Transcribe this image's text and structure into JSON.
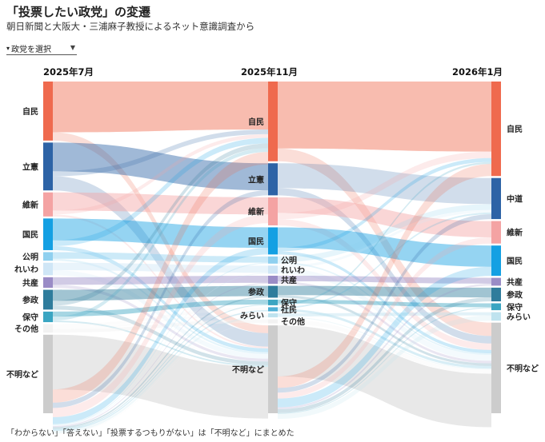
{
  "header": {
    "title": "「投票したい政党」の変遷",
    "subtitle": "朝日新聞と大阪大・三浦麻子教授によるネット意識調査から"
  },
  "selector": {
    "label": "政党を選択",
    "marker": "▾",
    "arrow": "▼"
  },
  "footnote": "「わからない」「答えない」「投票するつもりがない」は「不明など」にまとめた",
  "chart_data": {
    "type": "sankey",
    "stages": [
      {
        "label": "2025年7月",
        "nodes": [
          {
            "id": "自民",
            "label": "自民",
            "share": 17.9,
            "color": "#ef6a4e"
          },
          {
            "id": "立憲",
            "label": "立憲",
            "share": 14.5,
            "color": "#2d63a6"
          },
          {
            "id": "維新",
            "label": "維新",
            "share": 7.3,
            "color": "#f4a3a3"
          },
          {
            "id": "国民",
            "label": "国民",
            "share": 9.6,
            "color": "#14a0e3"
          },
          {
            "id": "公明",
            "label": "公明",
            "share": 2.6,
            "color": "#8fd0ef"
          },
          {
            "id": "れいわ",
            "label": "れいわ",
            "share": 3.8,
            "color": "#cfe6f6"
          },
          {
            "id": "共産",
            "label": "共産",
            "share": 3.2,
            "color": "#9a8cc6"
          },
          {
            "id": "参政",
            "label": "参政",
            "share": 6.0,
            "color": "#2f7c9c"
          },
          {
            "id": "保守",
            "label": "保守",
            "share": 3.2,
            "color": "#3aa5c2"
          },
          {
            "id": "その他",
            "label": "その他",
            "share": 2.6,
            "color": "#f2f2f2"
          },
          {
            "id": "不明など",
            "label": "不明など",
            "share": 23.8,
            "color": "#cccccc"
          }
        ]
      },
      {
        "label": "2025年11月",
        "nodes": [
          {
            "id": "自民",
            "label": "自民",
            "share": 25.6,
            "color": "#ef6a4e"
          },
          {
            "id": "立憲",
            "label": "立憲",
            "share": 10.3,
            "color": "#2d63a6"
          },
          {
            "id": "維新",
            "label": "維新",
            "share": 9.0,
            "color": "#f4a3a3"
          },
          {
            "id": "国民",
            "label": "国民",
            "share": 8.7,
            "color": "#14a0e3"
          },
          {
            "id": "公明",
            "label": "公明",
            "share": 2.3,
            "color": "#8fd0ef"
          },
          {
            "id": "れいわ",
            "label": "れいわ",
            "share": 2.6,
            "color": "#cfe6f6"
          },
          {
            "id": "共産",
            "label": "共産",
            "share": 2.6,
            "color": "#9a8cc6"
          },
          {
            "id": "参政",
            "label": "参政",
            "share": 3.8,
            "color": "#2f7c9c"
          },
          {
            "id": "保守",
            "label": "保守",
            "share": 1.8,
            "color": "#3aa5c2"
          },
          {
            "id": "社民",
            "label": "社民",
            "share": 1.3,
            "color": "#4fb0d6"
          },
          {
            "id": "みらい",
            "label": "みらい",
            "share": 1.3,
            "color": "#bfe3ef"
          },
          {
            "id": "その他",
            "label": "その他",
            "share": 1.3,
            "color": "#f2f2f2"
          },
          {
            "id": "不明など",
            "label": "不明など",
            "share": 28.2,
            "color": "#cccccc"
          }
        ]
      },
      {
        "label": "2026年1月",
        "nodes": [
          {
            "id": "自民",
            "label": "自民",
            "share": 29.0,
            "color": "#ef6a4e"
          },
          {
            "id": "中道",
            "label": "中道",
            "share": 12.6,
            "color": "#2d63a6"
          },
          {
            "id": "維新",
            "label": "維新",
            "share": 6.9,
            "color": "#f4a3a3"
          },
          {
            "id": "国民",
            "label": "国民",
            "share": 9.3,
            "color": "#14a0e3"
          },
          {
            "id": "共産",
            "label": "共産",
            "share": 2.4,
            "color": "#9a8cc6"
          },
          {
            "id": "参政",
            "label": "参政",
            "share": 4.2,
            "color": "#2f7c9c"
          },
          {
            "id": "保守",
            "label": "保守",
            "share": 2.1,
            "color": "#3aa5c2"
          },
          {
            "id": "みらい",
            "label": "みらい",
            "share": 2.6,
            "color": "#bfe3ef"
          },
          {
            "id": "不明など",
            "label": "不明など",
            "share": 27.8,
            "color": "#cccccc"
          }
        ]
      }
    ],
    "links": [
      [
        {
          "from": "自民",
          "to": "自民",
          "value": 15.4
        },
        {
          "from": "自民",
          "to": "不明など",
          "value": 2.5
        },
        {
          "from": "立憲",
          "to": "立憲",
          "value": 8.7
        },
        {
          "from": "立憲",
          "to": "自民",
          "value": 1.5
        },
        {
          "from": "立憲",
          "to": "不明など",
          "value": 4.3
        },
        {
          "from": "維新",
          "to": "維新",
          "value": 5.5
        },
        {
          "from": "維新",
          "to": "自民",
          "value": 1.2
        },
        {
          "from": "維新",
          "to": "不明など",
          "value": 0.6
        },
        {
          "from": "国民",
          "to": "国民",
          "value": 6.6
        },
        {
          "from": "国民",
          "to": "自民",
          "value": 1.8
        },
        {
          "from": "国民",
          "to": "不明など",
          "value": 1.2
        },
        {
          "from": "公明",
          "to": "公明",
          "value": 2.0
        },
        {
          "from": "公明",
          "to": "不明など",
          "value": 0.6
        },
        {
          "from": "れいわ",
          "to": "れいわ",
          "value": 2.3
        },
        {
          "from": "れいわ",
          "to": "不明など",
          "value": 1.5
        },
        {
          "from": "共産",
          "to": "共産",
          "value": 2.3
        },
        {
          "from": "共産",
          "to": "不明など",
          "value": 0.9
        },
        {
          "from": "参政",
          "to": "参政",
          "value": 3.3
        },
        {
          "from": "参政",
          "to": "自民",
          "value": 1.5
        },
        {
          "from": "参政",
          "to": "不明など",
          "value": 1.2
        },
        {
          "from": "保守",
          "to": "保守",
          "value": 1.5
        },
        {
          "from": "保守",
          "to": "自民",
          "value": 1.2
        },
        {
          "from": "保守",
          "to": "不明など",
          "value": 0.5
        },
        {
          "from": "その他",
          "to": "社民",
          "value": 0.9
        },
        {
          "from": "その他",
          "to": "みらい",
          "value": 0.6
        },
        {
          "from": "その他",
          "to": "その他",
          "value": 1.1
        },
        {
          "from": "不明など",
          "to": "不明など",
          "value": 16.6
        },
        {
          "from": "不明など",
          "to": "自民",
          "value": 4.0
        },
        {
          "from": "不明など",
          "to": "立憲",
          "value": 1.6
        },
        {
          "from": "不明など",
          "to": "維新",
          "value": 2.8
        },
        {
          "from": "不明など",
          "to": "国民",
          "value": 2.1
        },
        {
          "from": "不明など",
          "to": "公明",
          "value": 0.3
        },
        {
          "from": "不明など",
          "to": "れいわ",
          "value": 0.3
        },
        {
          "from": "不明など",
          "to": "共産",
          "value": 0.3
        },
        {
          "from": "不明など",
          "to": "参政",
          "value": 0.5
        },
        {
          "from": "不明など",
          "to": "保守",
          "value": 0.3
        },
        {
          "from": "不明など",
          "to": "社民",
          "value": 0.4
        },
        {
          "from": "不明など",
          "to": "みらい",
          "value": 0.7
        },
        {
          "from": "不明など",
          "to": "その他",
          "value": 0.2
        }
      ],
      [
        {
          "from": "自民",
          "to": "自民",
          "value": 21.5
        },
        {
          "from": "自民",
          "to": "不明など",
          "value": 4.1
        },
        {
          "from": "立憲",
          "to": "中道",
          "value": 8.0
        },
        {
          "from": "立憲",
          "to": "不明など",
          "value": 2.3
        },
        {
          "from": "維新",
          "to": "維新",
          "value": 5.0
        },
        {
          "from": "維新",
          "to": "自民",
          "value": 2.0
        },
        {
          "from": "維新",
          "to": "不明など",
          "value": 2.0
        },
        {
          "from": "国民",
          "to": "国民",
          "value": 6.5
        },
        {
          "from": "国民",
          "to": "自民",
          "value": 1.2
        },
        {
          "from": "国民",
          "to": "不明など",
          "value": 1.0
        },
        {
          "from": "公明",
          "to": "中道",
          "value": 1.8
        },
        {
          "from": "公明",
          "to": "不明など",
          "value": 0.5
        },
        {
          "from": "れいわ",
          "to": "中道",
          "value": 0.8
        },
        {
          "from": "れいわ",
          "to": "不明など",
          "value": 1.8
        },
        {
          "from": "共産",
          "to": "共産",
          "value": 1.8
        },
        {
          "from": "共産",
          "to": "不明など",
          "value": 0.8
        },
        {
          "from": "参政",
          "to": "参政",
          "value": 3.0
        },
        {
          "from": "参政",
          "to": "不明など",
          "value": 0.8
        },
        {
          "from": "保守",
          "to": "保守",
          "value": 1.2
        },
        {
          "from": "保守",
          "to": "自民",
          "value": 0.6
        },
        {
          "from": "社民",
          "to": "中道",
          "value": 0.5
        },
        {
          "from": "社民",
          "to": "不明など",
          "value": 0.8
        },
        {
          "from": "みらい",
          "to": "みらい",
          "value": 1.0
        },
        {
          "from": "みらい",
          "to": "不明など",
          "value": 0.3
        },
        {
          "from": "その他",
          "to": "不明など",
          "value": 1.3
        },
        {
          "from": "不明など",
          "to": "不明など",
          "value": 16.4
        },
        {
          "from": "不明など",
          "to": "自民",
          "value": 3.7
        },
        {
          "from": "不明など",
          "to": "中道",
          "value": 1.5
        },
        {
          "from": "不明など",
          "to": "維新",
          "value": 1.9
        },
        {
          "from": "不明など",
          "to": "国民",
          "value": 2.8
        },
        {
          "from": "不明など",
          "to": "共産",
          "value": 0.6
        },
        {
          "from": "不明など",
          "to": "参政",
          "value": 1.2
        },
        {
          "from": "不明など",
          "to": "保守",
          "value": 0.3
        },
        {
          "from": "不明など",
          "to": "みらい",
          "value": 1.6
        }
      ]
    ]
  }
}
